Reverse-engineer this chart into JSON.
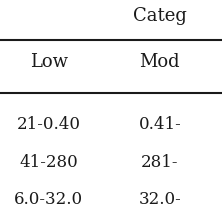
{
  "title": "Categ",
  "col_headers": [
    "Low",
    "Mod"
  ],
  "cell_data": [
    [
      "21-0.40",
      "0.41-"
    ],
    [
      "41-280",
      "281-"
    ],
    [
      "6.0-32.0",
      "32.0-"
    ]
  ],
  "background_color": "#ffffff",
  "text_color": "#1a1a1a",
  "font_size": 12,
  "title_font_size": 13
}
